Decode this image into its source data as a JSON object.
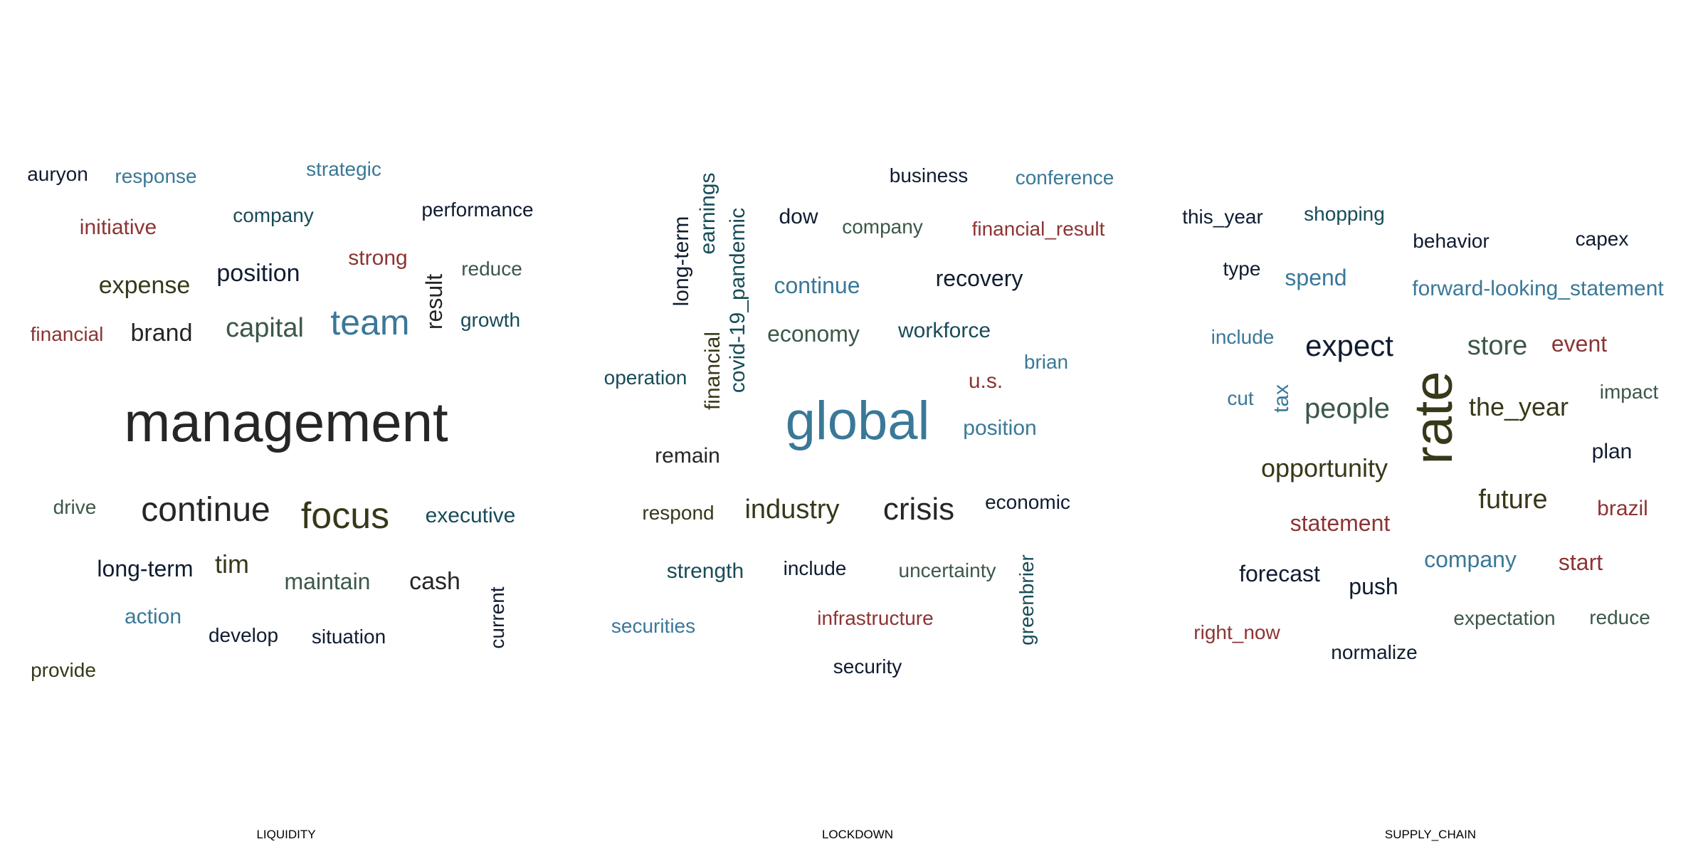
{
  "colors": {
    "dark": "#262626",
    "navy": "#101c30",
    "blue": "#3a7898",
    "teal": "#184c58",
    "green": "#3c5848",
    "olive": "#38381a",
    "red": "#8c3434"
  },
  "panels": [
    {
      "title": "LIQUIDITY",
      "words": [
        "management",
        "team",
        "focus",
        "continue",
        "capital",
        "expense",
        "position",
        "brand",
        "result",
        "tim",
        "maintain",
        "cash",
        "long-term",
        "executive",
        "strong",
        "company",
        "performance",
        "reduce",
        "growth",
        "initiative",
        "response",
        "strategic",
        "auryon",
        "financial",
        "drive",
        "action",
        "develop",
        "situation",
        "current",
        "provide"
      ]
    },
    {
      "title": "LOCKDOWN",
      "words": [
        "global",
        "crisis",
        "industry",
        "long-term",
        "earnings",
        "covid-19_pandemic",
        "financial",
        "business",
        "conference",
        "dow",
        "company",
        "financial_result",
        "continue",
        "recovery",
        "economy",
        "workforce",
        "brian",
        "u.s.",
        "operation",
        "position",
        "remain",
        "respond",
        "economic",
        "strength",
        "include",
        "uncertainty",
        "greenbrier",
        "securities",
        "infrastructure",
        "security"
      ]
    },
    {
      "title": "SUPPLY_CHAIN",
      "words": [
        "rate",
        "expect",
        "people",
        "store",
        "the_year",
        "opportunity",
        "future",
        "this_year",
        "shopping",
        "behavior",
        "capex",
        "type",
        "spend",
        "forward-looking_statement",
        "include",
        "event",
        "cut",
        "tax",
        "impact",
        "plan",
        "statement",
        "brazil",
        "company",
        "forecast",
        "push",
        "start",
        "expectation",
        "reduce",
        "right_now",
        "normalize"
      ]
    }
  ]
}
